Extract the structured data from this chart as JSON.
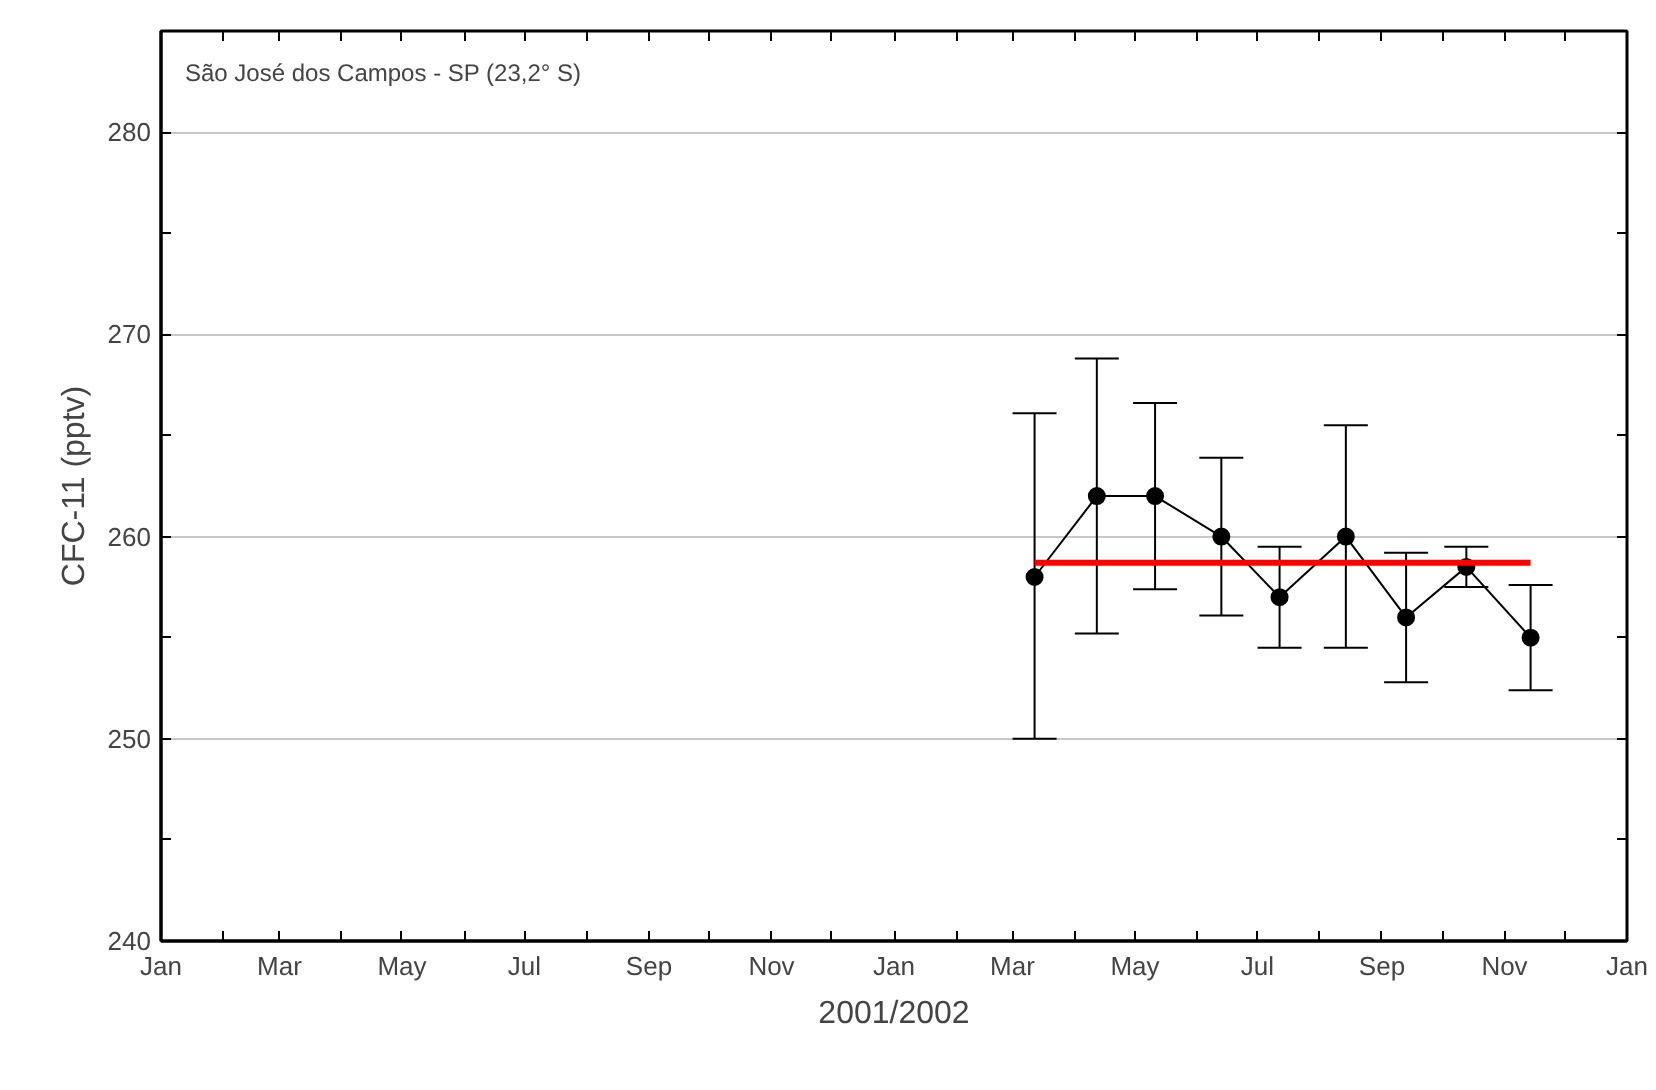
{
  "chart_data": {
    "type": "line",
    "xlabel": "2001/2002",
    "ylabel": "CFC-11 (pptv)",
    "annotations": [
      "São José dos Campos - SP (23,2° S)"
    ],
    "x": [
      "2002-03-12",
      "2002-04-12",
      "2002-05-11",
      "2002-06-13",
      "2002-07-12",
      "2002-08-14",
      "2002-09-13",
      "2002-10-13",
      "2002-11-14"
    ],
    "series": [
      {
        "color": "#000000",
        "marker": "circle",
        "line_style": "solid",
        "values": [
          258,
          262,
          262,
          260,
          257,
          260,
          256,
          258.5,
          255
        ],
        "errors": [
          [
            250,
            266.1
          ],
          [
            255.2,
            268.8
          ],
          [
            257.4,
            266.6
          ],
          [
            256.1,
            263.9
          ],
          [
            254.5,
            259.5
          ],
          [
            254.5,
            265.5
          ],
          [
            252.8,
            259.2
          ],
          [
            257.5,
            259.5
          ],
          [
            252.4,
            257.6
          ]
        ]
      },
      {
        "type": "line",
        "color": "#ff0000",
        "marker": "none",
        "line_style": "solid",
        "x": [
          "2002-03-12",
          "2002-11-14"
        ],
        "values": [
          258.7,
          258.7
        ]
      }
    ],
    "xlim": [
      "2001-01-01",
      "2003-01-01"
    ],
    "xticks": [
      {
        "value": "2001-01-01",
        "label": "Jan"
      },
      {
        "value": "2001-02-01",
        "label": null
      },
      {
        "value": "2001-03-01",
        "label": "Mar"
      },
      {
        "value": "2001-04-01",
        "label": null
      },
      {
        "value": "2001-05-01",
        "label": "May"
      },
      {
        "value": "2001-06-01",
        "label": null
      },
      {
        "value": "2001-07-01",
        "label": "Jul"
      },
      {
        "value": "2001-08-01",
        "label": null
      },
      {
        "value": "2001-09-01",
        "label": "Sep"
      },
      {
        "value": "2001-10-01",
        "label": null
      },
      {
        "value": "2001-11-01",
        "label": "Nov"
      },
      {
        "value": "2001-12-01",
        "label": null
      },
      {
        "value": "2002-01-01",
        "label": "Jan"
      },
      {
        "value": "2002-02-01",
        "label": null
      },
      {
        "value": "2002-03-01",
        "label": "Mar"
      },
      {
        "value": "2002-04-01",
        "label": null
      },
      {
        "value": "2002-05-01",
        "label": "May"
      },
      {
        "value": "2002-06-01",
        "label": null
      },
      {
        "value": "2002-07-01",
        "label": "Jul"
      },
      {
        "value": "2002-08-01",
        "label": null
      },
      {
        "value": "2002-09-01",
        "label": "Sep"
      },
      {
        "value": "2002-10-01",
        "label": null
      },
      {
        "value": "2002-11-01",
        "label": "Nov"
      },
      {
        "value": "2002-12-01",
        "label": null
      },
      {
        "value": "2003-01-01",
        "label": "Jan"
      }
    ],
    "ylim": [
      240,
      285
    ],
    "yticks": [
      240,
      {
        "value": 245,
        "label": null
      },
      250,
      {
        "value": 255,
        "label": null
      },
      260,
      {
        "value": 265,
        "label": null
      },
      270,
      {
        "value": 275,
        "label": null
      },
      280
    ],
    "grid": "y"
  }
}
